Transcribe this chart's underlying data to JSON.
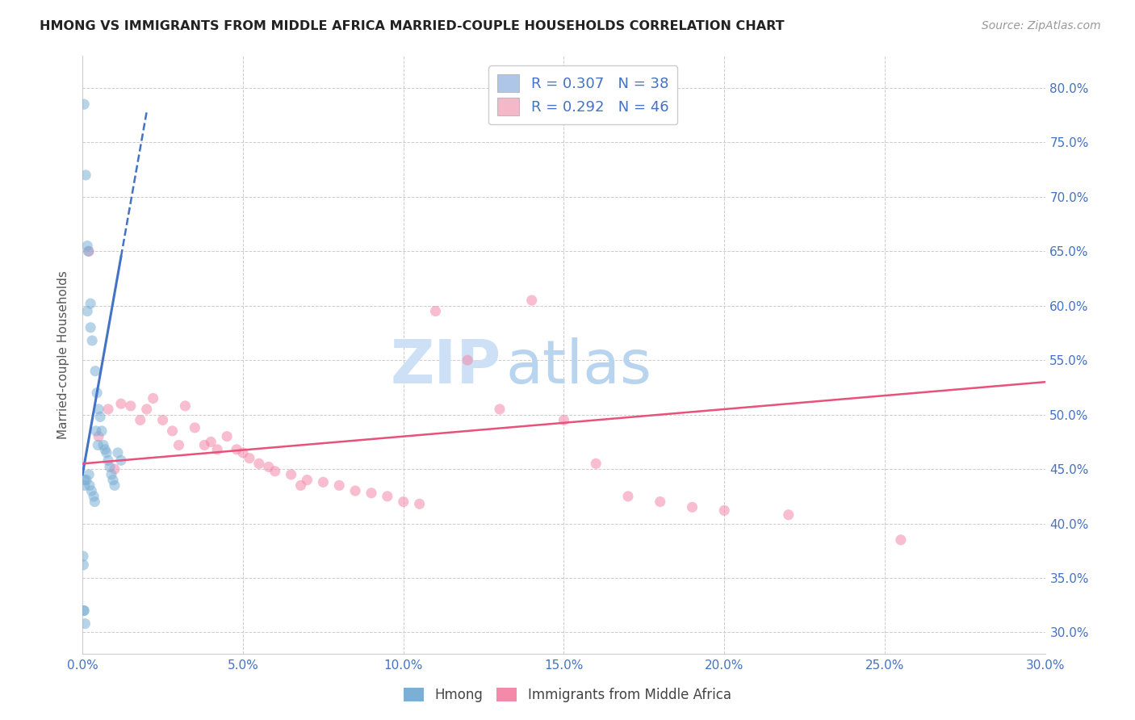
{
  "title": "HMONG VS IMMIGRANTS FROM MIDDLE AFRICA MARRIED-COUPLE HOUSEHOLDS CORRELATION CHART",
  "source": "Source: ZipAtlas.com",
  "ylabel": "Married-couple Households",
  "x_tick_labels": [
    "0.0%",
    "5.0%",
    "10.0%",
    "15.0%",
    "20.0%",
    "25.0%",
    "30.0%"
  ],
  "x_tick_values": [
    0.0,
    5.0,
    10.0,
    15.0,
    20.0,
    25.0,
    30.0
  ],
  "y_tick_labels": [
    "30.0%",
    "35.0%",
    "40.0%",
    "45.0%",
    "50.0%",
    "55.0%",
    "60.0%",
    "65.0%",
    "70.0%",
    "75.0%",
    "80.0%"
  ],
  "y_tick_values": [
    30.0,
    35.0,
    40.0,
    45.0,
    50.0,
    55.0,
    60.0,
    65.0,
    70.0,
    75.0,
    80.0
  ],
  "xlim": [
    0.0,
    30.0
  ],
  "ylim": [
    28.0,
    83.0
  ],
  "legend1_label": "R = 0.307   N = 38",
  "legend2_label": "R = 0.292   N = 46",
  "legend_color1": "#aec6e8",
  "legend_color2": "#f4b8c8",
  "dot_color1": "#7bafd4",
  "dot_color2": "#f48aaa",
  "line_color1": "#4472c4",
  "line_color2": "#e8527a",
  "watermark": "ZIPatlas",
  "watermark_color": "#d0e4f7",
  "hmong_label": "Hmong",
  "africa_label": "Immigrants from Middle Africa",
  "hmong_x": [
    0.05,
    0.05,
    0.08,
    0.1,
    0.12,
    0.15,
    0.18,
    0.2,
    0.22,
    0.25,
    0.28,
    0.3,
    0.35,
    0.38,
    0.4,
    0.42,
    0.45,
    0.48,
    0.5,
    0.55,
    0.6,
    0.65,
    0.7,
    0.75,
    0.8,
    0.85,
    0.9,
    0.95,
    1.0,
    1.1,
    1.2,
    0.02,
    0.03,
    0.04,
    0.06,
    0.07,
    0.15,
    0.25
  ],
  "hmong_y": [
    78.5,
    32.0,
    30.8,
    72.0,
    44.0,
    65.5,
    65.0,
    44.5,
    43.5,
    60.2,
    43.0,
    56.8,
    42.5,
    42.0,
    54.0,
    48.5,
    52.0,
    47.2,
    50.5,
    49.8,
    48.5,
    47.2,
    46.8,
    46.5,
    45.8,
    45.2,
    44.5,
    44.0,
    43.5,
    46.5,
    45.8,
    37.0,
    36.2,
    32.0,
    44.0,
    43.5,
    59.5,
    58.0
  ],
  "africa_x": [
    0.2,
    0.5,
    0.8,
    1.0,
    1.2,
    1.5,
    1.8,
    2.0,
    2.2,
    2.5,
    2.8,
    3.0,
    3.2,
    3.5,
    3.8,
    4.0,
    4.2,
    4.5,
    4.8,
    5.0,
    5.2,
    5.5,
    5.8,
    6.0,
    6.5,
    7.0,
    7.5,
    8.0,
    8.5,
    9.0,
    9.5,
    10.0,
    10.5,
    11.0,
    12.0,
    13.0,
    14.0,
    15.0,
    16.0,
    17.0,
    18.0,
    19.0,
    20.0,
    22.0,
    25.5,
    6.8
  ],
  "africa_y": [
    65.0,
    48.0,
    50.5,
    45.0,
    51.0,
    50.8,
    49.5,
    50.5,
    51.5,
    49.5,
    48.5,
    47.2,
    50.8,
    48.8,
    47.2,
    47.5,
    46.8,
    48.0,
    46.8,
    46.5,
    46.0,
    45.5,
    45.2,
    44.8,
    44.5,
    44.0,
    43.8,
    43.5,
    43.0,
    42.8,
    42.5,
    42.0,
    41.8,
    59.5,
    55.0,
    50.5,
    60.5,
    49.5,
    45.5,
    42.5,
    42.0,
    41.5,
    41.2,
    40.8,
    38.5,
    43.5
  ],
  "blue_line_x0": 0.0,
  "blue_line_y0": 44.5,
  "blue_line_x1": 1.2,
  "blue_line_y1": 64.5,
  "blue_dashed_x0": 0.0,
  "blue_dashed_y0": 44.5,
  "blue_dashed_x1": 1.5,
  "blue_dashed_y1": 70.0,
  "pink_line_x0": 0.0,
  "pink_line_y0": 45.5,
  "pink_line_x1": 30.0,
  "pink_line_y1": 53.0
}
